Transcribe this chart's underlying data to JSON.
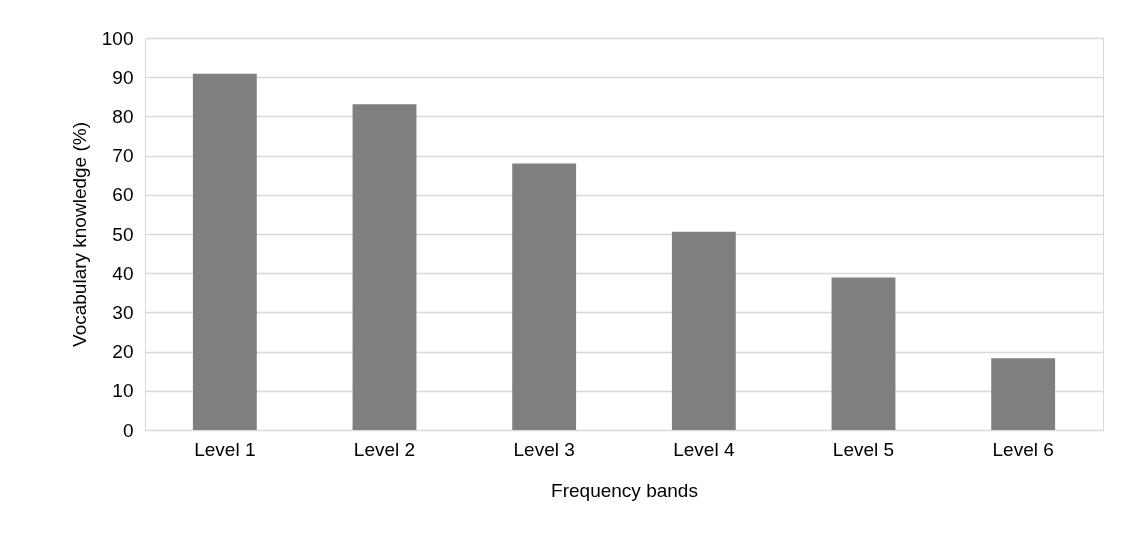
{
  "chart_data": {
    "type": "bar",
    "xlabel": "Frequency bands",
    "ylabel": "Vocabulary knowledge (%)",
    "categories": [
      "Level 1",
      "Level 2",
      "Level 3",
      "Level 4",
      "Level 5",
      "Level 6"
    ],
    "values": [
      90.9,
      83.1,
      68.0,
      50.6,
      38.9,
      18.3
    ],
    "color": "#7f7f7f",
    "ylim": [
      0,
      100
    ],
    "yticks": [
      0,
      10,
      20,
      30,
      40,
      50,
      60,
      70,
      80,
      90,
      100
    ],
    "grid": "y"
  }
}
